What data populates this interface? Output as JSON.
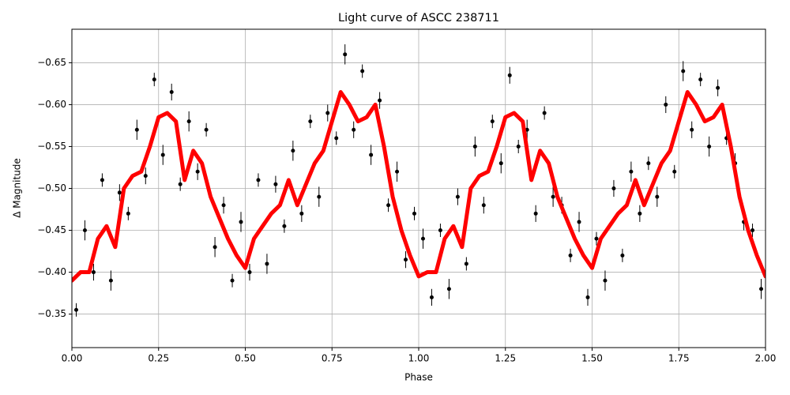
{
  "chart_data": {
    "type": "scatter",
    "title": "Light curve of ASCC 238711",
    "xlabel": "Phase",
    "ylabel": "Δ Magnitude",
    "xlim": [
      0,
      2
    ],
    "ylim": [
      -0.31,
      -0.69
    ],
    "grid": true,
    "xticks": [
      {
        "value": 0,
        "label": "0.00"
      },
      {
        "value": 0.25,
        "label": "0.25"
      },
      {
        "value": 0.5,
        "label": "0.50"
      },
      {
        "value": 0.75,
        "label": "0.75"
      },
      {
        "value": 1,
        "label": "1.00"
      },
      {
        "value": 1.25,
        "label": "1.25"
      },
      {
        "value": 1.5,
        "label": "1.50"
      },
      {
        "value": 1.75,
        "label": "1.75"
      },
      {
        "value": 2,
        "label": "2.00"
      }
    ],
    "yticks": [
      {
        "value": -0.65,
        "label": "−0.65"
      },
      {
        "value": -0.6,
        "label": "−0.60"
      },
      {
        "value": -0.55,
        "label": "−0.55"
      },
      {
        "value": -0.5,
        "label": "−0.50"
      },
      {
        "value": -0.45,
        "label": "−0.45"
      },
      {
        "value": -0.4,
        "label": "−0.40"
      },
      {
        "value": -0.35,
        "label": "−0.35"
      }
    ],
    "series": [
      {
        "type": "errorbar",
        "color": "#000000",
        "x": [
          0.0125,
          0.0375,
          0.0625,
          0.0875,
          0.1125,
          0.1375,
          0.1625,
          0.1875,
          0.2125,
          0.2375,
          0.2625,
          0.2875,
          0.3125,
          0.3375,
          0.3625,
          0.3875,
          0.4125,
          0.4375,
          0.4625,
          0.4875,
          0.5125,
          0.5375,
          0.5625,
          0.5875,
          0.6125,
          0.6375,
          0.6625,
          0.6875,
          0.7125,
          0.7375,
          0.7625,
          0.7875,
          0.8125,
          0.8375,
          0.8625,
          0.8875,
          0.9125,
          0.9375,
          0.9625,
          0.9875,
          1.0125,
          1.0375,
          1.0625,
          1.0875,
          1.1125,
          1.1375,
          1.1625,
          1.1875,
          1.2125,
          1.2375,
          1.2625,
          1.2875,
          1.3125,
          1.3375,
          1.3625,
          1.3875,
          1.4125,
          1.4375,
          1.4625,
          1.4875,
          1.5125,
          1.5375,
          1.5625,
          1.5875,
          1.6125,
          1.6375,
          1.6625,
          1.6875,
          1.7125,
          1.7375,
          1.7625,
          1.7875,
          1.8125,
          1.8375,
          1.8625,
          1.8875,
          1.9125,
          1.9375,
          1.9625,
          1.9875
        ],
        "values": [
          -0.355,
          -0.45,
          -0.4,
          -0.51,
          -0.39,
          -0.495,
          -0.47,
          -0.57,
          -0.515,
          -0.63,
          -0.54,
          -0.615,
          -0.505,
          -0.58,
          -0.52,
          -0.57,
          -0.43,
          -0.48,
          -0.39,
          -0.46,
          -0.4,
          -0.51,
          -0.41,
          -0.505,
          -0.455,
          -0.545,
          -0.47,
          -0.58,
          -0.49,
          -0.59,
          -0.56,
          -0.66,
          -0.57,
          -0.64,
          -0.54,
          -0.605,
          -0.48,
          -0.52,
          -0.415,
          -0.47,
          -0.44,
          -0.37,
          -0.45,
          -0.38,
          -0.49,
          -0.41,
          -0.55,
          -0.48,
          -0.58,
          -0.53,
          -0.635,
          -0.55,
          -0.57,
          -0.47,
          -0.59,
          -0.49,
          -0.48,
          -0.42,
          -0.46,
          -0.37,
          -0.44,
          -0.39,
          -0.5,
          -0.42,
          -0.52,
          -0.47,
          -0.53,
          -0.49,
          -0.6,
          -0.52,
          -0.64,
          -0.57,
          -0.63,
          -0.55,
          -0.62,
          -0.56,
          -0.53,
          -0.46,
          -0.45,
          -0.38
        ],
        "errors": [
          0.008,
          0.012,
          0.01,
          0.008,
          0.012,
          0.01,
          0.008,
          0.012,
          0.01,
          0.008,
          0.012,
          0.01,
          0.008,
          0.012,
          0.01,
          0.008,
          0.012,
          0.01,
          0.008,
          0.012,
          0.01,
          0.008,
          0.012,
          0.01,
          0.008,
          0.012,
          0.01,
          0.008,
          0.012,
          0.01,
          0.008,
          0.012,
          0.01,
          0.008,
          0.012,
          0.01,
          0.008,
          0.012,
          0.01,
          0.008,
          0.012,
          0.01,
          0.008,
          0.012,
          0.01,
          0.008,
          0.012,
          0.01,
          0.008,
          0.012,
          0.01,
          0.008,
          0.012,
          0.01,
          0.008,
          0.012,
          0.01,
          0.008,
          0.012,
          0.01,
          0.008,
          0.012,
          0.01,
          0.008,
          0.012,
          0.01,
          0.008,
          0.012,
          0.01,
          0.008,
          0.012,
          0.01,
          0.008,
          0.012,
          0.01,
          0.008,
          0.012,
          0.01,
          0.008,
          0.012
        ]
      },
      {
        "type": "line",
        "color": "#ff0000",
        "x": [
          0,
          0.025,
          0.05,
          0.075,
          0.1,
          0.125,
          0.15,
          0.175,
          0.2,
          0.225,
          0.25,
          0.275,
          0.3,
          0.325,
          0.35,
          0.375,
          0.4,
          0.425,
          0.45,
          0.475,
          0.5,
          0.525,
          0.55,
          0.575,
          0.6,
          0.625,
          0.65,
          0.675,
          0.7,
          0.725,
          0.75,
          0.775,
          0.8,
          0.825,
          0.85,
          0.875,
          0.9,
          0.925,
          0.95,
          0.975,
          1,
          1.025,
          1.05,
          1.075,
          1.1,
          1.125,
          1.15,
          1.175,
          1.2,
          1.225,
          1.25,
          1.275,
          1.3,
          1.325,
          1.35,
          1.375,
          1.4,
          1.425,
          1.45,
          1.475,
          1.5,
          1.525,
          1.55,
          1.575,
          1.6,
          1.625,
          1.65,
          1.675,
          1.7,
          1.725,
          1.75,
          1.775,
          1.8,
          1.825,
          1.85,
          1.875,
          1.9,
          1.925,
          1.95,
          1.975,
          2
        ],
        "values": [
          -0.39,
          -0.4,
          -0.4,
          -0.44,
          -0.455,
          -0.43,
          -0.5,
          -0.515,
          -0.52,
          -0.55,
          -0.585,
          -0.59,
          -0.58,
          -0.51,
          -0.545,
          -0.53,
          -0.49,
          -0.465,
          -0.44,
          -0.42,
          -0.405,
          -0.44,
          -0.455,
          -0.47,
          -0.48,
          -0.51,
          -0.48,
          -0.505,
          -0.53,
          -0.545,
          -0.58,
          -0.615,
          -0.6,
          -0.58,
          -0.585,
          -0.6,
          -0.55,
          -0.49,
          -0.45,
          -0.42,
          -0.395,
          -0.4,
          -0.4,
          -0.44,
          -0.455,
          -0.43,
          -0.5,
          -0.515,
          -0.52,
          -0.55,
          -0.585,
          -0.59,
          -0.58,
          -0.51,
          -0.545,
          -0.53,
          -0.49,
          -0.465,
          -0.44,
          -0.42,
          -0.405,
          -0.44,
          -0.455,
          -0.47,
          -0.48,
          -0.51,
          -0.48,
          -0.505,
          -0.53,
          -0.545,
          -0.58,
          -0.615,
          -0.6,
          -0.58,
          -0.585,
          -0.6,
          -0.55,
          -0.49,
          -0.45,
          -0.42,
          -0.395
        ]
      }
    ]
  }
}
